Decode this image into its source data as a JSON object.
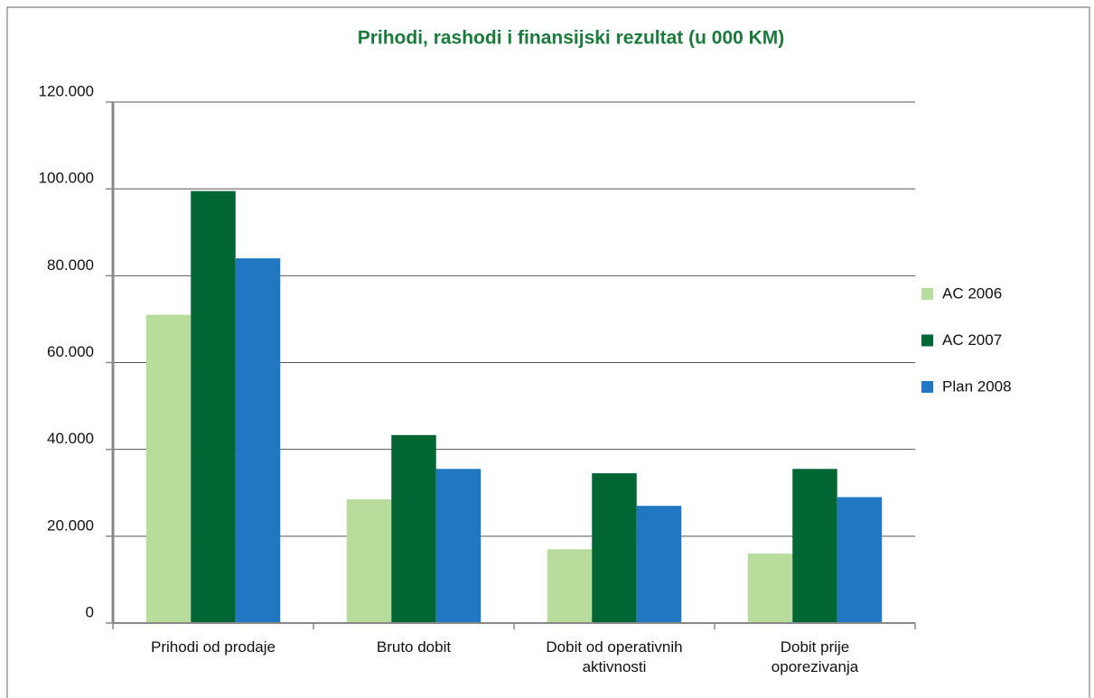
{
  "chart_data": {
    "type": "bar",
    "title": "Prihodi, rashodi i finansijski rezultat (u 000 KM)",
    "categories": [
      "Prihodi od prodaje",
      "Bruto dobit",
      "Dobit od operativnih aktivnosti",
      "Dobit prije oporezivanja"
    ],
    "series": [
      {
        "name": "AC 2006",
        "color": "#b8dc9c",
        "values": [
          71000,
          28500,
          17000,
          16000
        ]
      },
      {
        "name": "AC 2007",
        "color": "#006633",
        "values": [
          99500,
          43300,
          34500,
          35500
        ]
      },
      {
        "name": "Plan 2008",
        "color": "#1f78c1",
        "values": [
          84000,
          35500,
          27000,
          29000
        ]
      }
    ],
    "ylim": [
      0,
      120000
    ],
    "yticks": [
      0,
      {
        "value": 20000,
        "label": "20.000"
      },
      {
        "value": 40000,
        "label": "40.000"
      },
      {
        "value": 60000,
        "label": "60.000"
      },
      {
        "value": 80000,
        "label": "80.000"
      },
      {
        "value": 100000,
        "label": "100.000"
      },
      {
        "value": 120000,
        "label": "120.000"
      }
    ],
    "grid": true,
    "legend": "right"
  }
}
